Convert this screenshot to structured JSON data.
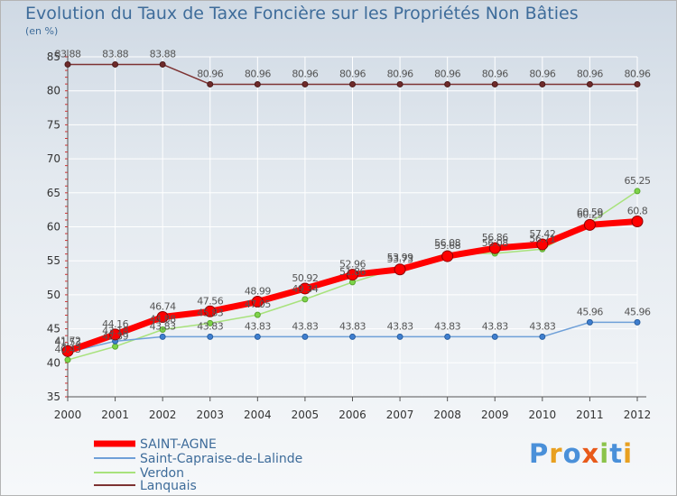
{
  "title": "Evolution du Taux de Taxe Foncière sur les Propriétés Non Bâties",
  "unit_label": "(en %)",
  "logo_text": "Proxiti",
  "chart_data": {
    "type": "line",
    "title": "Evolution du Taux de Taxe Foncière sur les Propriétés Non Bâties",
    "ylabel": "(en %)",
    "xlabel": "",
    "x": [
      "2000",
      "2001",
      "2002",
      "2003",
      "2004",
      "2005",
      "2006",
      "2007",
      "2008",
      "2009",
      "2010",
      "2011",
      "2012"
    ],
    "ylim": [
      35,
      85
    ],
    "yticks": [
      35,
      40,
      45,
      50,
      55,
      60,
      65,
      70,
      75,
      80,
      85
    ],
    "grid": true,
    "series": [
      {
        "name": "SAINT-AGNE",
        "color": "#ff0000",
        "values": [
          41.72,
          44.16,
          46.74,
          47.56,
          48.99,
          50.92,
          52.96,
          53.73,
          55.68,
          56.86,
          57.42,
          60.29,
          60.8
        ],
        "labels": [
          "41.72",
          "44.16",
          "46.74",
          "47.56",
          "48.99",
          "50.92",
          "52.96",
          "53.73",
          "55.68",
          "56.86",
          "57.42",
          "60.29",
          "60.8"
        ]
      },
      {
        "name": "Saint-Capraise-de-Lalinde",
        "color": "#6fa0d8",
        "values": [
          41.53,
          43.18,
          43.83,
          43.83,
          43.83,
          43.83,
          43.83,
          43.83,
          43.83,
          43.83,
          43.83,
          45.96,
          45.96
        ],
        "labels": [
          "41.53",
          "43.18",
          "43.83",
          "43.83",
          "43.83",
          "43.83",
          "43.83",
          "43.83",
          "43.83",
          "43.83",
          "43.83",
          "45.96",
          "45.96"
        ]
      },
      {
        "name": "Verdon",
        "color": "#a8e27c",
        "values": [
          40.43,
          42.39,
          44.88,
          45.83,
          47.05,
          49.34,
          51.86,
          53.99,
          56.08,
          56.08,
          56.71,
          60.59,
          65.25
        ],
        "labels": [
          "40.43",
          "42.39",
          "44.88",
          "45.83",
          "47.05",
          "49.34",
          "51.86",
          "53.99",
          "56.08",
          "56.08",
          "56.71",
          "60.59",
          "65.25"
        ]
      },
      {
        "name": "Lanquais",
        "color": "#7d3232",
        "values": [
          83.88,
          83.88,
          83.88,
          80.96,
          80.96,
          80.96,
          80.96,
          80.96,
          80.96,
          80.96,
          80.96,
          80.96,
          80.96
        ],
        "labels": [
          "83.88",
          "83.88",
          "83.88",
          "80.96",
          "80.96",
          "80.96",
          "80.96",
          "80.96",
          "80.96",
          "80.96",
          "80.96",
          "80.96",
          "80.96"
        ]
      }
    ]
  }
}
